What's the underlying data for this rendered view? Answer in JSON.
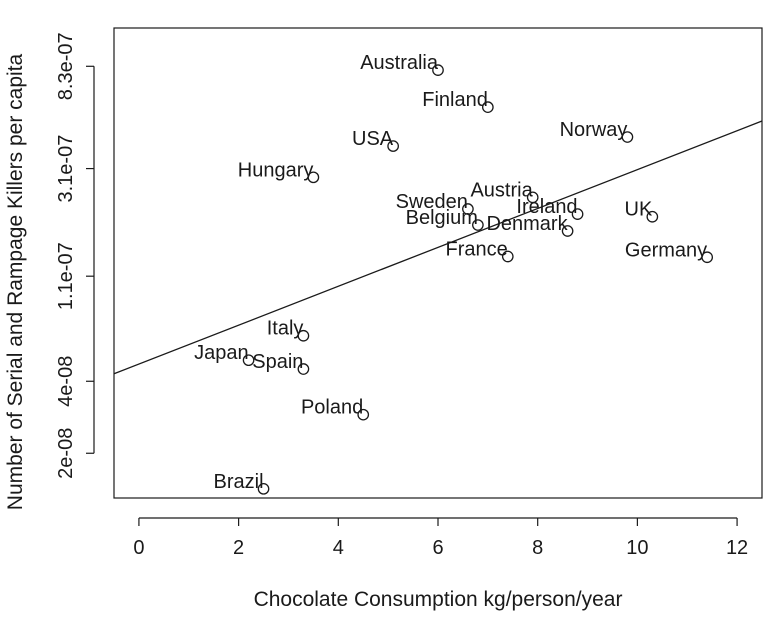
{
  "chart_data": {
    "type": "scatter",
    "title": "",
    "xlabel": "Chocolate Consumption kg/person/year",
    "ylabel": "Number of Serial and Rampage Killers per capita",
    "y_scale": "log",
    "xlim": [
      -0.5,
      12.5
    ],
    "ylim": [
      1.3e-08,
      1.2e-06
    ],
    "x_ticks": [
      0,
      2,
      4,
      6,
      8,
      10,
      12
    ],
    "x_tick_labels": [
      "0",
      "2",
      "4",
      "6",
      "8",
      "10",
      "12"
    ],
    "y_ticks": [
      2e-08,
      4e-08,
      1.1e-07,
      3.1e-07,
      8.3e-07
    ],
    "y_tick_labels": [
      "2e-08",
      "4e-08",
      "1.1e-07",
      "3.1e-07",
      "8.3e-07"
    ],
    "grid": false,
    "legend": "none",
    "point_style": "open-circle",
    "points": [
      {
        "label": "Australia",
        "x": 6.0,
        "y": 8e-07
      },
      {
        "label": "Finland",
        "x": 7.0,
        "y": 5.6e-07
      },
      {
        "label": "USA",
        "x": 5.1,
        "y": 3.85e-07
      },
      {
        "label": "Norway",
        "x": 9.8,
        "y": 4.2e-07
      },
      {
        "label": "Hungary",
        "x": 3.5,
        "y": 2.85e-07
      },
      {
        "label": "Austria",
        "x": 7.9,
        "y": 2.35e-07
      },
      {
        "label": "Sweden",
        "x": 6.6,
        "y": 2.1e-07
      },
      {
        "label": "Ireland",
        "x": 8.8,
        "y": 2e-07
      },
      {
        "label": "UK",
        "x": 10.3,
        "y": 1.95e-07
      },
      {
        "label": "Belgium",
        "x": 6.8,
        "y": 1.8e-07
      },
      {
        "label": "Denmark",
        "x": 8.6,
        "y": 1.7e-07
      },
      {
        "label": "France",
        "x": 7.4,
        "y": 1.33e-07
      },
      {
        "label": "Germany",
        "x": 11.4,
        "y": 1.32e-07
      },
      {
        "label": "Italy",
        "x": 3.3,
        "y": 6.2e-08
      },
      {
        "label": "Japan",
        "x": 2.2,
        "y": 4.9e-08
      },
      {
        "label": "Spain",
        "x": 3.3,
        "y": 4.5e-08
      },
      {
        "label": "Poland",
        "x": 4.5,
        "y": 2.9e-08
      },
      {
        "label": "Brazil",
        "x": 2.5,
        "y": 1.42e-08
      }
    ],
    "trendline": {
      "x": [
        -0.5,
        12.5
      ],
      "y": [
        4.3e-08,
        4.9e-07
      ]
    }
  }
}
